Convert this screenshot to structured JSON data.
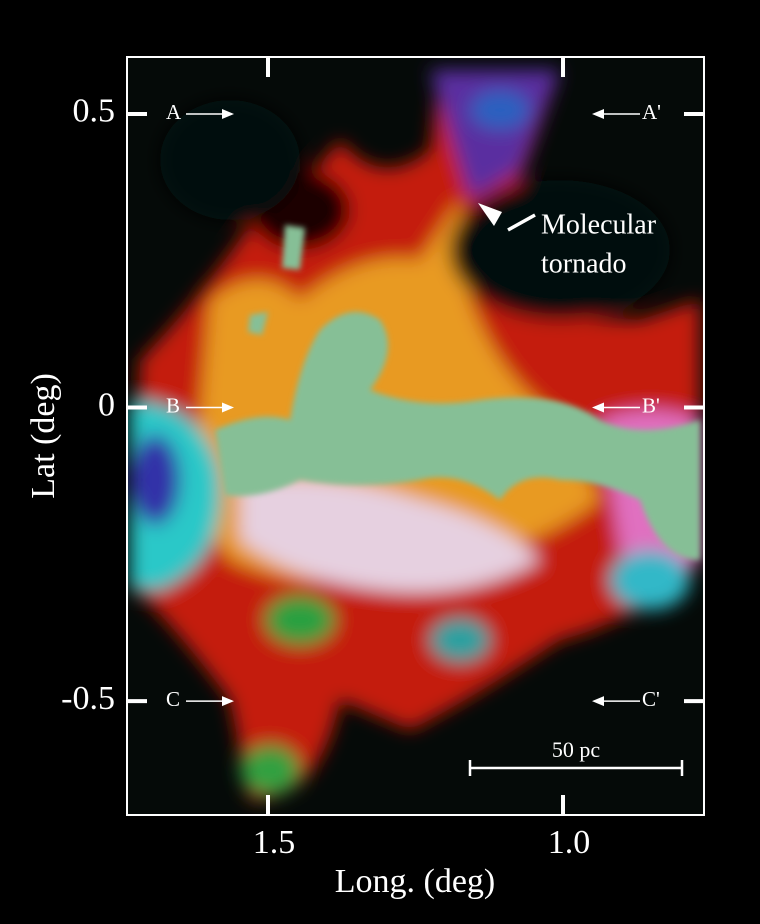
{
  "chart_data": {
    "type": "image",
    "xlabel": "Long. (deg)",
    "ylabel": "Lat (deg)",
    "xlim": [
      1.739,
      0.761
    ],
    "ylim": [
      -0.694,
      0.597
    ],
    "xticks": [
      1.5,
      {
        "value": 1,
        "label": "1.0"
      }
    ],
    "yticks": [
      0.5,
      0,
      -0.5
    ],
    "cuts": [
      {
        "left": "A",
        "right": "A'"
      },
      {
        "left": "B",
        "right": "B'"
      },
      {
        "left": "C",
        "right": "C'"
      }
    ],
    "annotation": [
      "Molecular",
      "tornado"
    ],
    "scale_bar": "50 pc"
  }
}
